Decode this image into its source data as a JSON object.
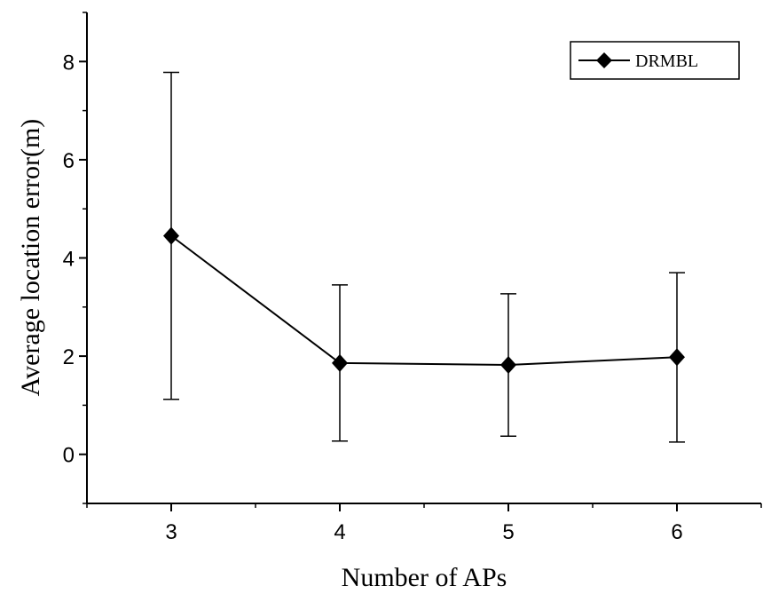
{
  "chart_data": {
    "type": "line",
    "xlabel": "Number of APs",
    "ylabel": "Average location error(m)",
    "x": [
      3,
      4,
      5,
      6
    ],
    "xlim": [
      2.5,
      6.5
    ],
    "ylim": [
      -1,
      9
    ],
    "xticks": [
      "3",
      "4",
      "5",
      "6"
    ],
    "yticks": [
      "0",
      "2",
      "4",
      "6",
      "8"
    ],
    "grid": false,
    "legend_position": "top-right",
    "series": [
      {
        "name": "DRMBL",
        "marker": "diamond",
        "color": "#000000",
        "values": [
          4.45,
          1.86,
          1.82,
          1.98
        ],
        "error_low": [
          1.12,
          0.27,
          0.37,
          0.25
        ],
        "error_high": [
          7.78,
          3.45,
          3.27,
          3.7
        ]
      }
    ]
  }
}
